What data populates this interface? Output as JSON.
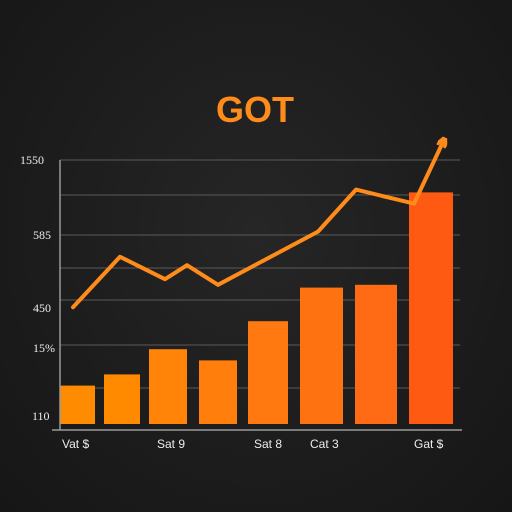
{
  "chart_data": {
    "type": "bar",
    "title": "GOT",
    "y_tick_labels": [
      "1550",
      "585",
      "450",
      "15%",
      "110"
    ],
    "x_tick_labels": [
      "Vat $",
      "Sat 9",
      "Sat 8",
      "Cat 3",
      "Gat $"
    ],
    "ylim": [
      0,
      100
    ],
    "grid": true,
    "bars": {
      "values": [
        13,
        17,
        26,
        22,
        36,
        48,
        49,
        82
      ],
      "colors": [
        "#ff8c00",
        "#ff8a00",
        "#ff8407",
        "#ff7e0c",
        "#ff7810",
        "#ff7212",
        "#ff6a14",
        "#ff5a12"
      ]
    },
    "line": {
      "values": [
        41,
        59,
        51,
        56,
        49,
        68,
        83,
        78,
        100
      ],
      "color": "#ff8c1a",
      "arrow": true
    },
    "colors": {
      "title": "#ff8c1a",
      "text": "#ededed",
      "grid": "#5a5a5a",
      "axis": "#9a9a9a"
    }
  }
}
